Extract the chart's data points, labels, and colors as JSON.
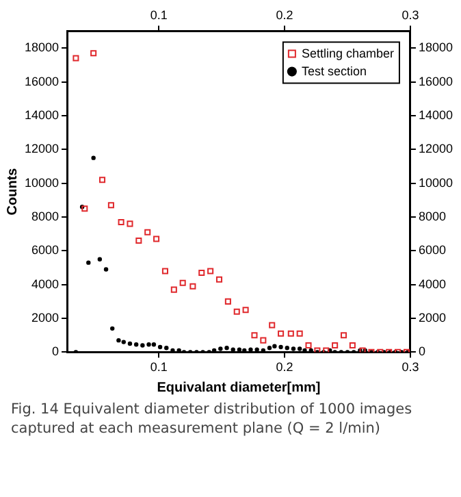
{
  "chart_data": {
    "type": "scatter",
    "xlabel": "Equivalant diameter[mm]",
    "ylabel": "Counts",
    "annotations": [
      "Fig. 14 Equivalent diameter distribution of 1000 images captured at each measurement plane (Q = 2 l/min)"
    ],
    "xlim": [
      0.027,
      0.3
    ],
    "xticks": [
      0.1,
      0.2,
      0.3
    ],
    "x2lim": [
      0.027,
      0.3
    ],
    "x2ticks": [
      0.1,
      0.2,
      0.3
    ],
    "ylim": [
      0,
      19000
    ],
    "yticks": [
      0,
      2000,
      4000,
      6000,
      8000,
      10000,
      12000,
      14000,
      16000,
      18000
    ],
    "y2lim": [
      0,
      19000
    ],
    "y2ticks": [
      0,
      2000,
      4000,
      6000,
      8000,
      10000,
      12000,
      14000,
      16000,
      18000
    ],
    "grid": false,
    "legend": "top right",
    "series": [
      {
        "name": "Settling chamber",
        "color": "#e0282c",
        "marker": "square",
        "x": [
          0.034,
          0.041,
          0.048,
          0.055,
          0.062,
          0.07,
          0.077,
          0.084,
          0.091,
          0.098,
          0.105,
          0.112,
          0.119,
          0.127,
          0.134,
          0.141,
          0.148,
          0.155,
          0.162,
          0.169,
          0.176,
          0.183,
          0.19,
          0.197,
          0.205,
          0.212,
          0.219,
          0.226,
          0.233,
          0.24,
          0.247,
          0.254,
          0.262,
          0.269,
          0.276,
          0.283,
          0.29,
          0.297
        ],
        "values": [
          17400,
          8500,
          17700,
          10200,
          8700,
          7700,
          7600,
          6600,
          7100,
          6700,
          4800,
          3700,
          4100,
          3900,
          4700,
          4800,
          4300,
          3000,
          2400,
          2500,
          1000,
          700,
          1600,
          1100,
          1100,
          1100,
          400,
          100,
          100,
          400,
          1000,
          400,
          100,
          0,
          0,
          0,
          0,
          0
        ]
      },
      {
        "name": "Test section",
        "color": "#000000",
        "marker": "circle",
        "x": [
          0.034,
          0.039,
          0.044,
          0.048,
          0.053,
          0.058,
          0.063,
          0.068,
          0.072,
          0.077,
          0.082,
          0.087,
          0.092,
          0.096,
          0.101,
          0.106,
          0.111,
          0.116,
          0.12,
          0.125,
          0.13,
          0.135,
          0.14,
          0.144,
          0.149,
          0.154,
          0.159,
          0.164,
          0.168,
          0.173,
          0.178,
          0.183,
          0.188,
          0.192,
          0.197,
          0.202,
          0.207,
          0.212,
          0.216,
          0.221,
          0.226,
          0.231,
          0.236,
          0.24,
          0.245,
          0.25,
          0.255,
          0.26,
          0.264,
          0.269,
          0.274,
          0.279,
          0.284,
          0.288,
          0.293,
          0.298
        ],
        "values": [
          0,
          8600,
          5300,
          11500,
          5500,
          4900,
          1400,
          700,
          600,
          500,
          450,
          400,
          450,
          450,
          300,
          250,
          100,
          100,
          0,
          0,
          0,
          0,
          0,
          100,
          200,
          250,
          150,
          150,
          100,
          150,
          150,
          100,
          250,
          350,
          300,
          250,
          200,
          200,
          100,
          100,
          0,
          0,
          100,
          0,
          0,
          0,
          0,
          100,
          100,
          0,
          0,
          0,
          0,
          0,
          0,
          0
        ]
      }
    ]
  }
}
